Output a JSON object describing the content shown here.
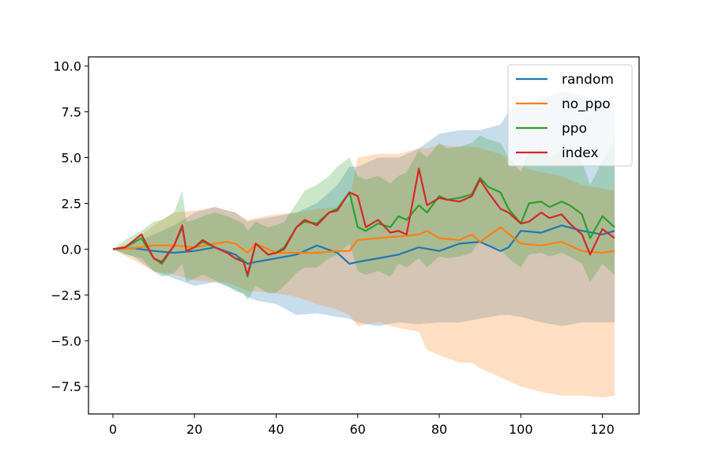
{
  "chart_data": {
    "type": "line",
    "title": "",
    "xlabel": "",
    "ylabel": "",
    "xlim": [
      -6,
      129
    ],
    "ylim": [
      -9,
      10.5
    ],
    "xticks": [
      0,
      20,
      40,
      60,
      80,
      100,
      120
    ],
    "xtick_labels": [
      "0",
      "20",
      "40",
      "60",
      "80",
      "100",
      "120"
    ],
    "yticks": [
      10.0,
      7.5,
      5.0,
      2.5,
      0.0,
      -2.5,
      -5.0,
      -7.5
    ],
    "ytick_labels": [
      "10.0",
      "7.5",
      "5.0",
      "2.5",
      "0.0",
      "−2.5",
      "−5.0",
      "−7.5"
    ],
    "grid": false,
    "legend": {
      "placement": "top-right"
    },
    "series": [
      {
        "name": "random",
        "color": "#1f77b4",
        "x": [
          0,
          5,
          10,
          15,
          20,
          25,
          30,
          33,
          35,
          40,
          45,
          50,
          55,
          58,
          60,
          65,
          70,
          75,
          80,
          85,
          90,
          95,
          97,
          100,
          105,
          110,
          115,
          120,
          123
        ],
        "values": [
          0,
          0.05,
          -0.1,
          -0.2,
          -0.1,
          0.1,
          -0.3,
          -0.8,
          -0.7,
          -0.5,
          -0.3,
          0.2,
          -0.2,
          -0.8,
          -0.7,
          -0.5,
          -0.3,
          0.1,
          -0.1,
          0.3,
          0.4,
          -0.1,
          0.1,
          1.0,
          0.9,
          1.3,
          1.0,
          0.8,
          1.0
        ],
        "band_upper": [
          0,
          0.3,
          0.8,
          1.3,
          2.0,
          2.3,
          2.0,
          1.5,
          1.6,
          1.8,
          2.0,
          2.5,
          3.5,
          4.5,
          4.5,
          5.0,
          5.0,
          5.5,
          6.3,
          6.5,
          6.5,
          6.8,
          7.5,
          7.9,
          8.2,
          8.6,
          8.4,
          8.0,
          8.0
        ],
        "band_lower": [
          0,
          -0.4,
          -1.2,
          -1.6,
          -2.0,
          -1.8,
          -2.2,
          -2.6,
          -2.8,
          -3.0,
          -3.6,
          -3.5,
          -3.7,
          -3.8,
          -4.0,
          -4.2,
          -4.0,
          -4.1,
          -4.0,
          -4.0,
          -3.8,
          -3.6,
          -3.6,
          -3.7,
          -4.0,
          -4.2,
          -4.0,
          -4.0,
          -4.0
        ]
      },
      {
        "name": "no_ppo",
        "color": "#ff7f0e",
        "x": [
          0,
          5,
          10,
          15,
          20,
          25,
          28,
          30,
          33,
          35,
          40,
          45,
          50,
          55,
          58,
          60,
          65,
          70,
          75,
          77,
          80,
          85,
          88,
          90,
          95,
          100,
          105,
          110,
          115,
          120,
          123
        ],
        "values": [
          0,
          0.05,
          0.2,
          0.2,
          0.1,
          0.3,
          0.4,
          0.3,
          -0.2,
          0.3,
          -0.2,
          -0.2,
          -0.2,
          -0.1,
          -0.1,
          0.5,
          0.6,
          0.7,
          0.8,
          1.0,
          0.6,
          0.5,
          0.8,
          0.4,
          1.2,
          0.3,
          0.2,
          0.4,
          -0.1,
          -0.2,
          -0.1
        ],
        "band_upper": [
          0,
          0.4,
          1.3,
          2.0,
          2.1,
          2.3,
          2.1,
          2.0,
          1.6,
          1.7,
          1.9,
          2.0,
          2.2,
          2.3,
          2.6,
          5.0,
          5.2,
          5.2,
          5.5,
          5.5,
          5.7,
          5.6,
          5.6,
          5.5,
          5.2,
          4.5,
          4.2,
          4.0,
          3.5,
          3.3,
          3.2
        ],
        "band_lower": [
          0,
          -0.6,
          -1.2,
          -1.4,
          -1.7,
          -1.8,
          -1.8,
          -2.0,
          -2.3,
          -2.3,
          -2.4,
          -2.6,
          -3.0,
          -3.3,
          -3.6,
          -4.2,
          -4.0,
          -4.3,
          -4.5,
          -5.5,
          -5.8,
          -6.2,
          -6.2,
          -6.5,
          -7.0,
          -7.5,
          -7.8,
          -8.0,
          -8.0,
          -8.1,
          -8.0
        ]
      },
      {
        "name": "ppo",
        "color": "#2ca02c",
        "x": [
          0,
          3,
          7,
          10,
          12,
          15,
          17,
          18,
          20,
          22,
          25,
          28,
          30,
          32,
          33,
          35,
          38,
          40,
          42,
          45,
          47,
          50,
          53,
          55,
          58,
          60,
          62,
          65,
          68,
          70,
          72,
          75,
          77,
          80,
          82,
          85,
          88,
          90,
          92,
          95,
          97,
          100,
          102,
          105,
          107,
          110,
          112,
          115,
          117,
          120,
          123
        ],
        "values": [
          0,
          0.1,
          0.6,
          -0.5,
          -0.8,
          0.2,
          1.2,
          -0.1,
          0.1,
          0.4,
          0.1,
          -0.2,
          -0.5,
          -0.6,
          -1.5,
          0.3,
          -0.3,
          -0.2,
          0.1,
          1.2,
          1.5,
          1.4,
          2.0,
          2.2,
          3.1,
          1.2,
          1.0,
          1.4,
          1.2,
          1.8,
          1.6,
          2.4,
          2.0,
          2.9,
          2.7,
          2.8,
          3.0,
          3.9,
          3.4,
          3.1,
          2.2,
          1.4,
          2.5,
          2.6,
          2.3,
          2.6,
          2.4,
          1.9,
          0.6,
          1.8,
          1.2
        ],
        "band_upper": [
          0,
          0.5,
          1.0,
          1.5,
          1.6,
          2.0,
          3.2,
          1.5,
          1.6,
          1.8,
          2.0,
          1.8,
          1.6,
          1.4,
          1.0,
          1.5,
          1.2,
          1.3,
          1.5,
          2.5,
          3.2,
          3.5,
          4.0,
          4.5,
          5.0,
          4.0,
          3.8,
          4.0,
          3.6,
          4.0,
          4.2,
          5.4,
          5.0,
          5.8,
          5.5,
          5.6,
          5.8,
          6.2,
          6.0,
          5.8,
          5.0,
          4.2,
          5.3,
          5.5,
          5.0,
          5.4,
          5.2,
          4.8,
          3.5,
          4.8,
          6.0
        ],
        "band_lower": [
          0,
          -0.3,
          -0.5,
          -1.2,
          -1.5,
          -1.3,
          -0.8,
          -1.8,
          -1.6,
          -1.4,
          -1.7,
          -2.0,
          -2.3,
          -2.4,
          -2.8,
          -2.0,
          -2.4,
          -2.4,
          -2.0,
          -1.3,
          -1.0,
          -1.0,
          -0.5,
          -0.3,
          0.3,
          -1.2,
          -1.4,
          -1.2,
          -1.5,
          -0.8,
          -1.0,
          -0.5,
          -1.0,
          -0.4,
          -0.5,
          -0.4,
          -0.2,
          0.5,
          0.2,
          0.0,
          -0.5,
          -1.0,
          -0.3,
          -0.2,
          -0.4,
          -0.2,
          -0.4,
          -0.8,
          -1.8,
          -0.8,
          -1.4
        ]
      },
      {
        "name": "index",
        "color": "#d62728",
        "x": [
          0,
          3,
          7,
          10,
          12,
          15,
          17,
          18,
          20,
          22,
          25,
          28,
          30,
          32,
          33,
          35,
          38,
          40,
          42,
          45,
          47,
          50,
          53,
          55,
          58,
          60,
          62,
          65,
          68,
          70,
          72,
          75,
          77,
          80,
          82,
          85,
          88,
          90,
          92,
          95,
          97,
          100,
          102,
          105,
          107,
          110,
          112,
          115,
          117,
          120,
          123
        ],
        "values": [
          0,
          0.1,
          0.8,
          -0.5,
          -0.7,
          0.2,
          1.3,
          -0.1,
          0.1,
          0.5,
          0.1,
          -0.2,
          -0.5,
          -0.7,
          -1.4,
          0.3,
          -0.3,
          -0.2,
          0.0,
          1.2,
          1.6,
          1.3,
          2.0,
          2.1,
          3.1,
          2.9,
          1.2,
          1.6,
          0.9,
          1.0,
          0.8,
          4.4,
          2.4,
          2.8,
          2.7,
          2.6,
          2.9,
          3.8,
          3.1,
          2.2,
          2.0,
          1.4,
          1.5,
          2.0,
          1.7,
          1.9,
          1.4,
          0.8,
          -0.3,
          1.1,
          0.6
        ],
        "band_upper": [],
        "band_lower": []
      }
    ]
  }
}
